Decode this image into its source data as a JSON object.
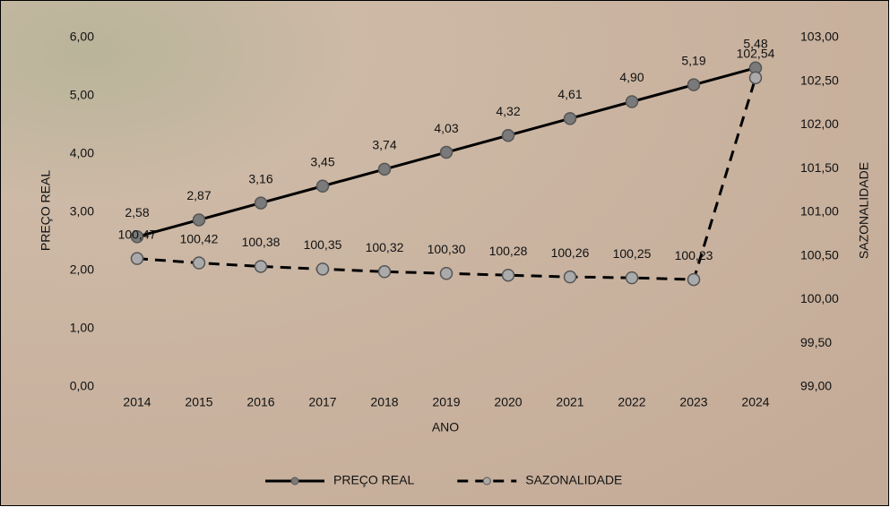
{
  "chart_data": {
    "type": "line",
    "x_label": "ANO",
    "y_label": "PREÇO REAL",
    "y2_label": "SAZONALIDADE",
    "categories": [
      "2014",
      "2015",
      "2016",
      "2017",
      "2018",
      "2019",
      "2020",
      "2021",
      "2022",
      "2023",
      "2024"
    ],
    "series": [
      {
        "name": "PREÇO REAL",
        "color": "#000000",
        "marker_color": "#7a7a7a",
        "dashed": false,
        "values": [
          2.58,
          2.87,
          3.16,
          3.45,
          3.74,
          4.03,
          4.32,
          4.61,
          4.9,
          5.19,
          5.48
        ],
        "value_labels": [
          "2,58",
          "2,87",
          "3,16",
          "3,45",
          "3,74",
          "4,03",
          "4,32",
          "4,61",
          "4,90",
          "5,19",
          "5,48"
        ]
      },
      {
        "name": "SAZONALIDADE",
        "color": "#000000",
        "marker_color": "#aaaaaa",
        "dashed": true,
        "axis": "y2",
        "values": [
          100.47,
          100.42,
          100.38,
          100.35,
          100.32,
          100.3,
          100.28,
          100.26,
          100.25,
          100.23,
          102.54
        ],
        "value_labels": [
          "100,47",
          "100,42",
          "100,38",
          "100,35",
          "100,32",
          "100,30",
          "100,28",
          "100,26",
          "100,25",
          "100,23",
          "102,54"
        ]
      }
    ],
    "ylim": [
      0,
      6
    ],
    "yticks": [
      {
        "value": 0,
        "label": "0,00"
      },
      {
        "value": 1,
        "label": "1,00"
      },
      {
        "value": 2,
        "label": "2,00"
      },
      {
        "value": 3,
        "label": "3,00"
      },
      {
        "value": 4,
        "label": "4,00"
      },
      {
        "value": 5,
        "label": "5,00"
      },
      {
        "value": 6,
        "label": "6,00"
      }
    ],
    "y2lim": [
      99,
      103
    ],
    "y2ticks": [
      {
        "value": 99,
        "label": "99,00"
      },
      {
        "value": 99.5,
        "label": "99,50"
      },
      {
        "value": 100,
        "label": "100,00"
      },
      {
        "value": 100.5,
        "label": "100,50"
      },
      {
        "value": 101,
        "label": "101,00"
      },
      {
        "value": 101.5,
        "label": "101,50"
      },
      {
        "value": 102,
        "label": "102,00"
      },
      {
        "value": 102.5,
        "label": "102,50"
      },
      {
        "value": 103,
        "label": "103,00"
      }
    ],
    "grid": false,
    "legend": "bottom"
  }
}
